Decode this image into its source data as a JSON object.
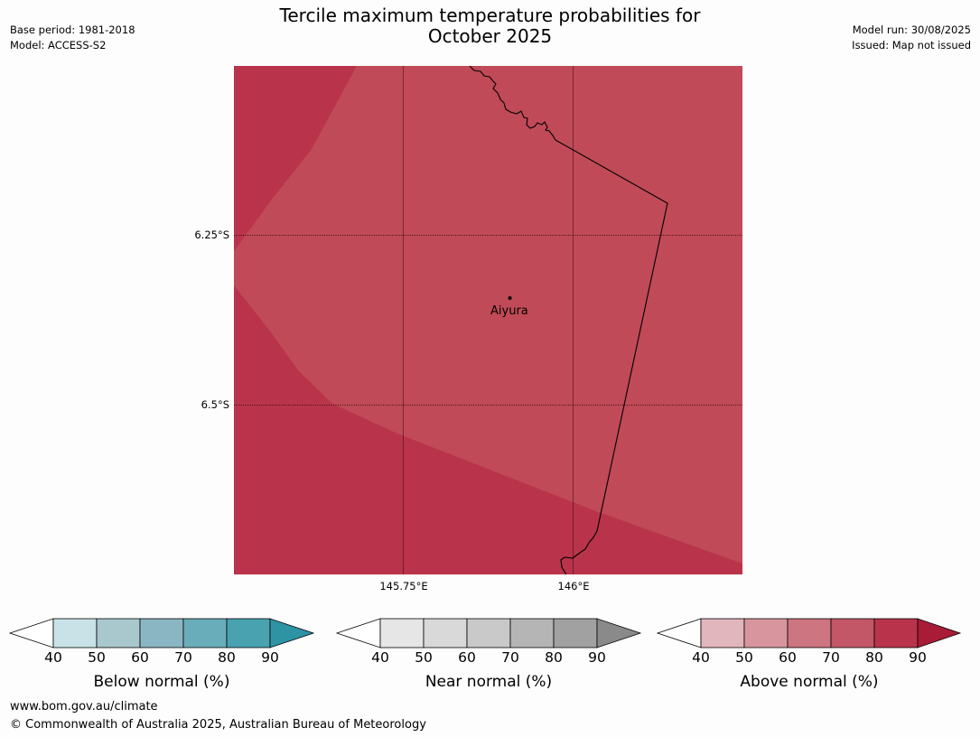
{
  "title_line1": "Tercile maximum temperature probabilities for",
  "title_line2": "October 2025",
  "meta_left": {
    "base_period": "Base period: 1981-2018",
    "model": "Model: ACCESS-S2"
  },
  "meta_right": {
    "model_run": "Model run: 30/08/2025",
    "issued": "Issued: Map not issued"
  },
  "map": {
    "place_label": "Aiyura",
    "lat_labels": [
      "6.25°S",
      "6.5°S"
    ],
    "lon_labels": [
      "145.75°E",
      "146°E"
    ],
    "colors": {
      "dark_red": "#b9344a",
      "light_red": "#c04a57",
      "border": "#000000"
    }
  },
  "colorbars": [
    {
      "label": "Below normal (%)",
      "ticks": [
        "40",
        "50",
        "60",
        "70",
        "80",
        "90"
      ],
      "colors": [
        "#c9e2e7",
        "#a9c8cd",
        "#8ab6c3",
        "#6aadba",
        "#48a2b0",
        "#2e93a4"
      ]
    },
    {
      "label": "Near normal (%)",
      "ticks": [
        "40",
        "50",
        "60",
        "70",
        "80",
        "90"
      ],
      "colors": [
        "#e6e6e6",
        "#d9d9d9",
        "#c9c9c9",
        "#b5b5b5",
        "#a1a1a1",
        "#8a8a8a"
      ]
    },
    {
      "label": "Above normal (%)",
      "ticks": [
        "40",
        "50",
        "60",
        "70",
        "80",
        "90"
      ],
      "colors": [
        "#e1b6bc",
        "#d8959e",
        "#cd7580",
        "#c35667",
        "#b9344a",
        "#a81c37"
      ]
    }
  ],
  "footer": {
    "url": "www.bom.gov.au/climate",
    "copyright": "© Commonwealth of Australia 2025, Australian Bureau of Meteorology"
  }
}
